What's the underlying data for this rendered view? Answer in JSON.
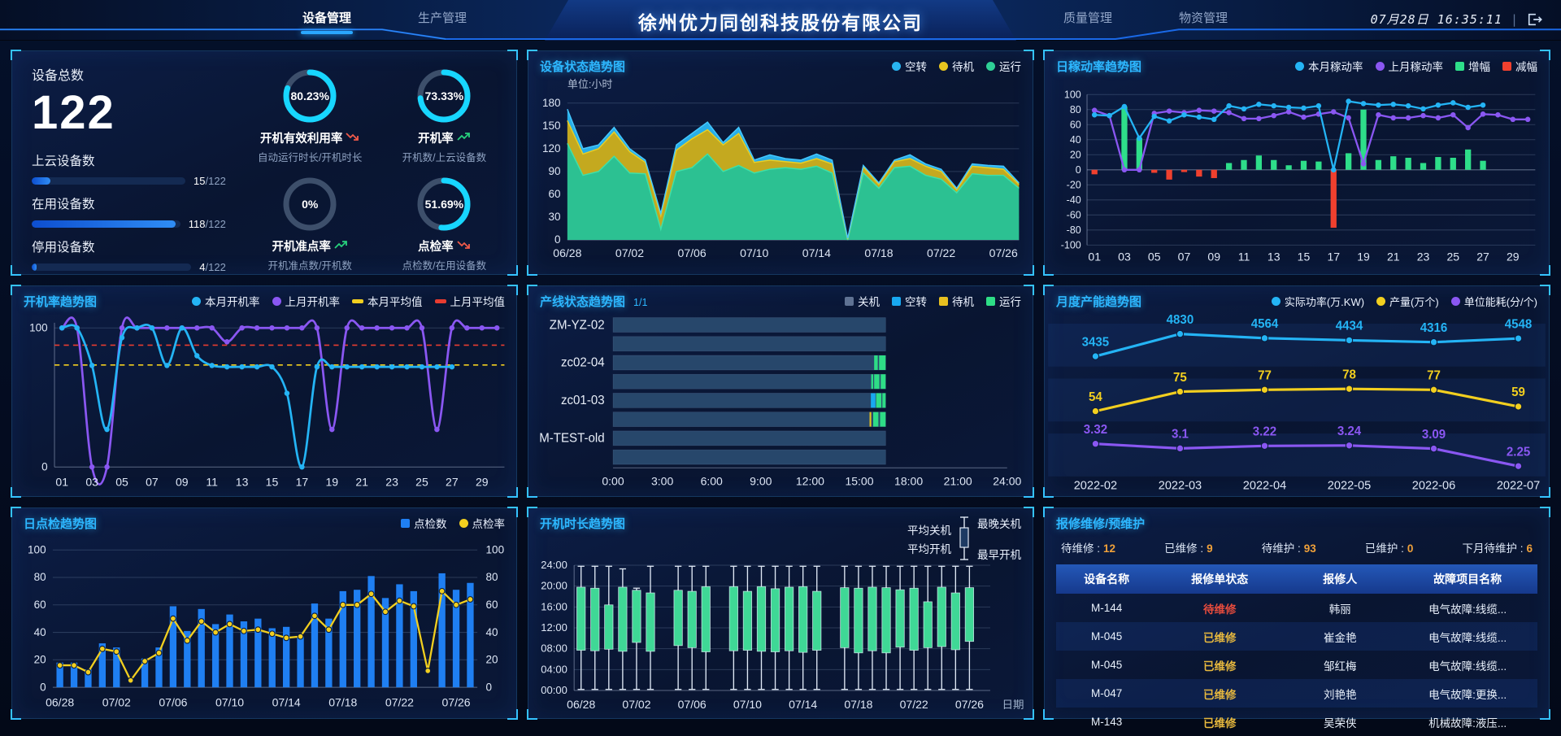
{
  "header": {
    "nav_left": [
      {
        "label": "设备管理"
      },
      {
        "label": "生产管理"
      }
    ],
    "title": "徐州优力同创科技股份有限公司",
    "nav_right": [
      {
        "label": "质量管理"
      },
      {
        "label": "物资管理"
      }
    ],
    "date": "07月28日",
    "time": "16:35:11"
  },
  "overview": {
    "total_label": "设备总数",
    "total_value": "122",
    "progress": [
      {
        "label": "上云设备数",
        "value": 15,
        "total": 122,
        "count": "15",
        "den": "/122"
      },
      {
        "label": "在用设备数",
        "value": 118,
        "total": 122,
        "count": "118",
        "den": "/122"
      },
      {
        "label": "停用设备数",
        "value": 4,
        "total": 122,
        "count": "4",
        "den": "/122"
      }
    ],
    "gauges": [
      {
        "percent": 80.23,
        "text": "80.23%",
        "label": "开机有效利用率",
        "trend": "down",
        "sub": "自动运行时长/开机时长"
      },
      {
        "percent": 73.33,
        "text": "73.33%",
        "label": "开机率",
        "trend": "up",
        "sub": "开机数/上云设备数"
      },
      {
        "percent": 0,
        "text": "0%",
        "label": "开机准点率",
        "trend": "up",
        "sub": "开机准点数/开机数"
      },
      {
        "percent": 51.69,
        "text": "51.69%",
        "label": "点检率",
        "trend": "down",
        "sub": "点检数/在用设备数"
      }
    ]
  },
  "panels": {
    "status": {
      "title": "设备状态趋势图",
      "unit": "单位:小时",
      "legend": [
        {
          "label": "空转",
          "color": "#28b4f0"
        },
        {
          "label": "待机",
          "color": "#e8c61f"
        },
        {
          "label": "运行",
          "color": "#2ecf96"
        }
      ]
    },
    "utilization": {
      "title": "日稼动率趋势图",
      "legend": [
        {
          "label": "本月稼动率",
          "color": "#24b4f5",
          "shape": "dot"
        },
        {
          "label": "上月稼动率",
          "color": "#8a57f2",
          "shape": "dot"
        },
        {
          "label": "增幅",
          "color": "#2ede8a",
          "shape": "sq"
        },
        {
          "label": "减幅",
          "color": "#f0402e",
          "shape": "sq"
        }
      ]
    },
    "rate": {
      "title": "开机率趋势图",
      "legend": [
        {
          "label": "本月开机率",
          "color": "#24b4f5",
          "shape": "dot"
        },
        {
          "label": "上月开机率",
          "color": "#8a57f2",
          "shape": "dot"
        },
        {
          "label": "本月平均值",
          "color": "#f2cf1f",
          "shape": "dash"
        },
        {
          "label": "上月平均值",
          "color": "#e83c30",
          "shape": "dash"
        }
      ]
    },
    "line_status": {
      "title": "产线状态趋势图",
      "page": "1/1",
      "legend": [
        {
          "label": "关机",
          "color": "#5f7293"
        },
        {
          "label": "空转",
          "color": "#18a8f0"
        },
        {
          "label": "待机",
          "color": "#e8c020"
        },
        {
          "label": "运行",
          "color": "#2edd86"
        }
      ]
    },
    "capacity": {
      "title": "月度产能趋势图",
      "legend": [
        {
          "label": "实际功率(万.KW)",
          "color": "#24b4f5"
        },
        {
          "label": "产量(万个)",
          "color": "#f2cf1f"
        },
        {
          "label": "单位能耗(分/个)",
          "color": "#8a57f2"
        }
      ]
    },
    "inspection": {
      "title": "日点检趋势图",
      "legend": [
        {
          "label": "点检数",
          "color": "#1f7ff2",
          "shape": "sq"
        },
        {
          "label": "点检率",
          "color": "#f2cf1f",
          "shape": "dot"
        }
      ]
    },
    "duration": {
      "title": "开机时长趋势图",
      "legend": {
        "avg_off": "平均关机",
        "avg_on": "平均开机",
        "latest_off": "最晚关机",
        "earliest_on": "最早开机"
      },
      "axis_right_label": "日期"
    },
    "maintenance": {
      "title": "报修维修/预维护",
      "stats": [
        {
          "label": "待维修 :",
          "value": "12"
        },
        {
          "label": "已维修 :",
          "value": "9"
        },
        {
          "label": "待维护 :",
          "value": "93"
        },
        {
          "label": "已维护 :",
          "value": "0"
        },
        {
          "label": "下月待维护 :",
          "value": "6"
        }
      ],
      "table": {
        "headers": [
          "设备名称",
          "报修单状态",
          "报修人",
          "故障项目名称"
        ],
        "rows": [
          {
            "device": "M-144",
            "status": "待维修",
            "status_color": "#e84c3d",
            "reporter": "韩丽",
            "fault": "电气故障:线缆..."
          },
          {
            "device": "M-045",
            "status": "已维修",
            "status_color": "#e8b93e",
            "reporter": "崔金艳",
            "fault": "电气故障:线缆..."
          },
          {
            "device": "M-045",
            "status": "已维修",
            "status_color": "#e8b93e",
            "reporter": "邹红梅",
            "fault": "电气故障:线缆..."
          },
          {
            "device": "M-047",
            "status": "已维修",
            "status_color": "#e8b93e",
            "reporter": "刘艳艳",
            "fault": "电气故障:更换..."
          },
          {
            "device": "M-143",
            "status": "已维修",
            "status_color": "#e8b93e",
            "reporter": "吴荣侠",
            "fault": "机械故障:液压..."
          }
        ]
      }
    }
  },
  "chart_data": [
    {
      "id": "status",
      "type": "area",
      "title": "设备状态趋势图",
      "stacked": true,
      "unit": "单位:小时",
      "ylim": [
        0,
        180
      ],
      "ytick": 30,
      "grid": true,
      "legend_position": "top-right",
      "categories": [
        "06/28",
        "06/29",
        "06/30",
        "07/01",
        "07/02",
        "07/03",
        "07/04",
        "07/05",
        "07/06",
        "07/07",
        "07/08",
        "07/09",
        "07/10",
        "07/11",
        "07/12",
        "07/13",
        "07/14",
        "07/15",
        "07/16",
        "07/17",
        "07/18",
        "07/19",
        "07/20",
        "07/21",
        "07/22",
        "07/23",
        "07/24",
        "07/25",
        "07/26",
        "07/27"
      ],
      "series": [
        {
          "name": "运行",
          "color": "#2cc192",
          "values": [
            127,
            85,
            90,
            110,
            88,
            87,
            14,
            90,
            95,
            113,
            90,
            98,
            88,
            93,
            95,
            93,
            97,
            88,
            0,
            88,
            68,
            95,
            97,
            85,
            80,
            62,
            87,
            85,
            85,
            68
          ]
        },
        {
          "name": "待机",
          "color": "#c4a91f",
          "values": [
            30,
            28,
            30,
            32,
            28,
            15,
            18,
            28,
            38,
            32,
            35,
            42,
            14,
            12,
            8,
            8,
            10,
            12,
            1,
            8,
            5,
            8,
            10,
            12,
            10,
            4,
            10,
            10,
            8,
            5
          ]
        },
        {
          "name": "空转",
          "color": "#28aee8",
          "values": [
            15,
            7,
            5,
            6,
            4,
            3,
            3,
            7,
            7,
            10,
            3,
            8,
            3,
            7,
            4,
            4,
            6,
            5,
            1,
            2,
            2,
            2,
            5,
            3,
            3,
            2,
            3,
            3,
            4,
            2
          ]
        }
      ]
    },
    {
      "id": "utilization",
      "type": "line",
      "title": "日稼动率趋势图",
      "ylim": [
        -100,
        100
      ],
      "ytick": 20,
      "grid": true,
      "x": [
        "01",
        "02",
        "03",
        "04",
        "05",
        "06",
        "07",
        "08",
        "09",
        "10",
        "11",
        "12",
        "13",
        "14",
        "15",
        "16",
        "17",
        "18",
        "19",
        "20",
        "21",
        "22",
        "23",
        "24",
        "25",
        "26",
        "27",
        "28",
        "29",
        "30"
      ],
      "series": [
        {
          "name": "本月稼动率",
          "color": "#24b4f5",
          "values": [
            73,
            72,
            84,
            42,
            71,
            65,
            73,
            70,
            67,
            85,
            81,
            87,
            85,
            83,
            82,
            85,
            0,
            91,
            88,
            86,
            87,
            85,
            81,
            86,
            89,
            83,
            86
          ]
        },
        {
          "name": "上月稼动率",
          "color": "#8a57f2",
          "values": [
            79,
            72,
            0,
            0,
            75,
            78,
            76,
            79,
            78,
            76,
            68,
            68,
            72,
            77,
            70,
            74,
            77,
            69,
            8,
            73,
            69,
            69,
            72,
            69,
            73,
            56,
            74,
            73,
            67,
            67
          ]
        }
      ],
      "bars": {
        "up_name": "增幅",
        "up_color": "#2ede8a",
        "down_name": "减幅",
        "down_color": "#f0402e",
        "derived": "本月稼动率 - 上月稼动率"
      }
    },
    {
      "id": "rate",
      "type": "line",
      "title": "开机率趋势图",
      "smooth": true,
      "ylim": [
        0,
        100
      ],
      "grid": false,
      "x": [
        "01",
        "02",
        "03",
        "04",
        "05",
        "06",
        "07",
        "08",
        "09",
        "10",
        "11",
        "12",
        "13",
        "14",
        "15",
        "16",
        "17",
        "18",
        "19",
        "20",
        "21",
        "22",
        "23",
        "24",
        "25",
        "26",
        "27",
        "28",
        "29",
        "30"
      ],
      "series": [
        {
          "name": "本月开机率",
          "color": "#24b4f5",
          "values": [
            100,
            100,
            73,
            27,
            93,
            100,
            100,
            73,
            100,
            80,
            73,
            72,
            72,
            72,
            72,
            53,
            0,
            72,
            72,
            72,
            72,
            72,
            72,
            72,
            72,
            72,
            72
          ]
        },
        {
          "name": "上月开机率",
          "color": "#8a57f2",
          "values": [
            100,
            100,
            0,
            0,
            100,
            100,
            100,
            100,
            100,
            100,
            100,
            90,
            100,
            100,
            100,
            100,
            100,
            100,
            27,
            100,
            100,
            100,
            100,
            100,
            100,
            27,
            100,
            100,
            100,
            100
          ]
        }
      ],
      "avg_lines": [
        {
          "name": "本月平均值",
          "color": "#f2cf1f",
          "value": 73.33
        },
        {
          "name": "上月平均值",
          "color": "#e83c30",
          "value": 87.6
        }
      ]
    },
    {
      "id": "line_status",
      "type": "timeline",
      "title": "产线状态趋势图",
      "xlim_hours": [
        0,
        24
      ],
      "xtick_hours": 3,
      "bar_end_hour": 16.6,
      "state_colors": {
        "off": "#27476b",
        "idle": "#18a8f0",
        "standby": "#e8c020",
        "run": "#2edd86"
      },
      "rows": [
        {
          "label": "ZM-YZ-02",
          "segments": []
        },
        {
          "label": "",
          "segments": []
        },
        {
          "label": "zc02-04",
          "segments": [
            [
              15.9,
              16.12,
              "run"
            ],
            [
              16.2,
              16.6,
              "run"
            ]
          ]
        },
        {
          "label": "",
          "segments": [
            [
              15.72,
              15.84,
              "run"
            ],
            [
              15.9,
              16.22,
              "run"
            ],
            [
              16.3,
              16.6,
              "run"
            ]
          ]
        },
        {
          "label": "zc01-03",
          "segments": [
            [
              15.7,
              15.98,
              "idle"
            ],
            [
              16.02,
              16.34,
              "run"
            ],
            [
              16.4,
              16.6,
              "run"
            ]
          ]
        },
        {
          "label": "",
          "segments": [
            [
              15.62,
              15.72,
              "standby"
            ],
            [
              15.84,
              16.16,
              "run"
            ],
            [
              16.26,
              16.6,
              "run"
            ]
          ]
        },
        {
          "label": "M-TEST-old",
          "segments": []
        },
        {
          "label": "",
          "segments": []
        }
      ]
    },
    {
      "id": "capacity",
      "type": "line",
      "title": "月度产能趋势图",
      "banded": true,
      "categories": [
        "2022-02",
        "2022-03",
        "2022-04",
        "2022-05",
        "2022-06",
        "2022-07"
      ],
      "series": [
        {
          "name": "实际功率(万.KW)",
          "color": "#24b4f5",
          "values": [
            3435,
            4830,
            4564,
            4434,
            4316,
            4548
          ]
        },
        {
          "name": "产量(万个)",
          "color": "#f2cf1f",
          "values": [
            54,
            75,
            77,
            78,
            77,
            59
          ]
        },
        {
          "name": "单位能耗(分/个)",
          "color": "#8a57f2",
          "values": [
            3.32,
            3.1,
            3.22,
            3.24,
            3.09,
            2.25
          ]
        }
      ]
    },
    {
      "id": "inspection",
      "type": "bar",
      "title": "日点检趋势图",
      "ylim": [
        0,
        100
      ],
      "ytick": 20,
      "dual_axis": true,
      "grid": true,
      "categories": [
        "06/28",
        "06/29",
        "06/30",
        "07/01",
        "07/02",
        "07/03",
        "07/04",
        "07/05",
        "07/06",
        "07/07",
        "07/08",
        "07/09",
        "07/10",
        "07/11",
        "07/12",
        "07/13",
        "07/14",
        "07/15",
        "07/16",
        "07/17",
        "07/18",
        "07/19",
        "07/20",
        "07/21",
        "07/22",
        "07/23",
        "07/24",
        "07/25",
        "07/26",
        "07/27"
      ],
      "series": [
        {
          "name": "点检数",
          "type": "bar",
          "color": "#1f7ff2",
          "values": [
            18,
            18,
            13,
            32,
            29,
            0,
            21,
            29,
            59,
            41,
            57,
            46,
            53,
            48,
            50,
            43,
            44,
            37,
            61,
            50,
            70,
            71,
            81,
            65,
            75,
            70,
            0,
            83,
            71,
            76
          ]
        },
        {
          "name": "点检率",
          "type": "line",
          "color": "#f2cf1f",
          "values": [
            16,
            16,
            11,
            28,
            26,
            5,
            19,
            25,
            50,
            34,
            48,
            40,
            46,
            41,
            42,
            39,
            36,
            37,
            52,
            42,
            60,
            60,
            68,
            55,
            63,
            59,
            12,
            70,
            60,
            64
          ]
        }
      ]
    },
    {
      "id": "duration",
      "type": "candlestick",
      "title": "开机时长趋势图",
      "ylim_hours": [
        0,
        24
      ],
      "ytick_hours": 4,
      "xlabel_right": "日期",
      "value_meaning": [
        "最早开机",
        "平均开机",
        "平均关机",
        "最晚关机"
      ],
      "categories": [
        "06/28",
        "06/29",
        "06/30",
        "07/01",
        "07/02",
        "07/03",
        "07/04",
        "07/05",
        "07/06",
        "07/07",
        "07/08",
        "07/09",
        "07/10",
        "07/11",
        "07/12",
        "07/13",
        "07/14",
        "07/15",
        "07/16",
        "07/17",
        "07/18",
        "07/19",
        "07/20",
        "07/21",
        "07/22",
        "07/23",
        "07/24",
        "07/25",
        "07/26",
        "07/27"
      ],
      "candles": [
        [
          0.2,
          7.7,
          19.8,
          23.8
        ],
        [
          0.2,
          7.6,
          19.6,
          23.8
        ],
        [
          0.2,
          7.9,
          16.4,
          23.8
        ],
        [
          0.2,
          7.5,
          19.8,
          23.3
        ],
        [
          0.2,
          9.2,
          19.2,
          19.6
        ],
        [
          0.2,
          7.5,
          18.7,
          23.8
        ],
        null,
        [
          0.2,
          8.6,
          19.2,
          23.8
        ],
        [
          0.2,
          8.2,
          19.0,
          23.8
        ],
        [
          0.2,
          7.4,
          19.9,
          23.8
        ],
        null,
        [
          0.2,
          7.6,
          19.9,
          23.8
        ],
        [
          0.2,
          7.7,
          19.0,
          23.8
        ],
        [
          0.2,
          7.5,
          19.9,
          23.8
        ],
        [
          0.2,
          7.4,
          19.5,
          23.8
        ],
        [
          0.2,
          7.6,
          19.8,
          23.8
        ],
        [
          0.2,
          7.3,
          19.9,
          23.8
        ],
        [
          0.2,
          7.7,
          19.0,
          23.8
        ],
        null,
        [
          0.2,
          8.2,
          19.7,
          23.8
        ],
        [
          0.2,
          7.2,
          19.6,
          23.8
        ],
        [
          0.2,
          7.6,
          19.8,
          23.8
        ],
        [
          0.2,
          7.2,
          19.7,
          23.8
        ],
        [
          0.2,
          8.3,
          19.3,
          23.8
        ],
        [
          0.2,
          7.7,
          19.6,
          23.8
        ],
        [
          0.2,
          8.2,
          17.0,
          23.8
        ],
        [
          0.2,
          8.4,
          19.8,
          23.8
        ],
        [
          0.2,
          7.8,
          18.7,
          23.8
        ],
        [
          0.2,
          9.4,
          19.7,
          23.8
        ]
      ],
      "body_color": "#3fd896"
    }
  ]
}
